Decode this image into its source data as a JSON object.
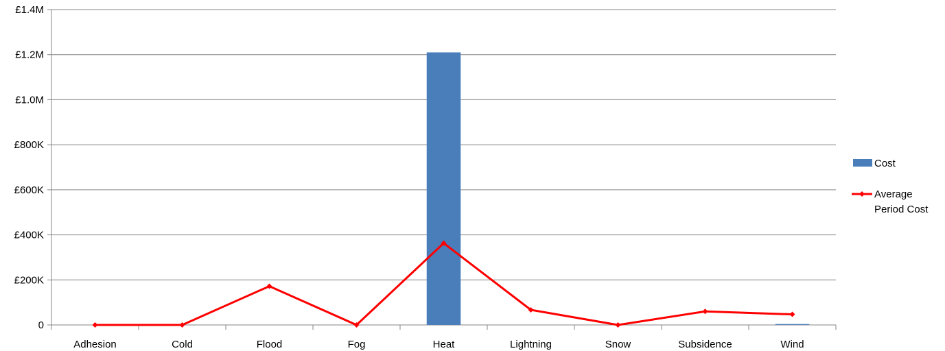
{
  "chart_data": {
    "type": "bar",
    "title": "",
    "xlabel": "",
    "ylabel": "",
    "categories": [
      "Adhesion",
      "Cold",
      "Flood",
      "Fog",
      "Heat",
      "Lightning",
      "Snow",
      "Subsidence",
      "Wind"
    ],
    "ylim": [
      0,
      1400000
    ],
    "y_ticks": [
      0,
      200000,
      400000,
      600000,
      800000,
      1000000,
      1200000,
      1400000
    ],
    "y_tick_labels": [
      "0",
      "£200K",
      "£400K",
      "£600K",
      "£800K",
      "£1.0M",
      "£1.2M",
      "£1.4M"
    ],
    "grid": true,
    "legend_position": "right",
    "series": [
      {
        "name": "Cost",
        "type": "bar",
        "color": "#4a7ebb",
        "values": [
          0,
          0,
          0,
          0,
          1210000,
          0,
          0,
          0,
          4000
        ]
      },
      {
        "name": "Average Period Cost",
        "type": "line",
        "color": "#ff0000",
        "values": [
          0,
          0,
          172000,
          0,
          363000,
          67000,
          0,
          60000,
          47000
        ]
      }
    ],
    "legend": {
      "items": [
        {
          "key": "cost",
          "lines": [
            "Cost"
          ]
        },
        {
          "key": "avg",
          "lines": [
            "Average",
            "Period Cost"
          ]
        }
      ]
    }
  }
}
